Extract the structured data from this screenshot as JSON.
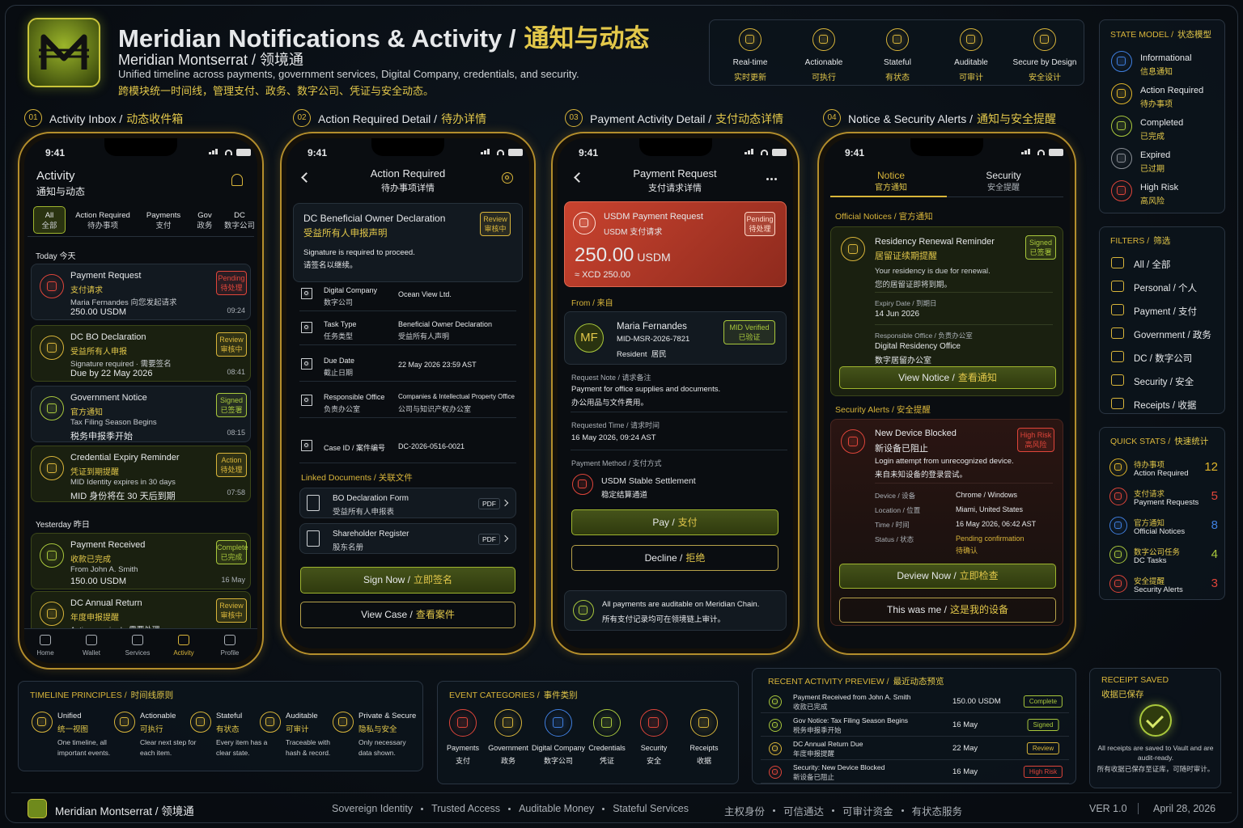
{
  "header": {
    "title": "Meridian Notifications & Activity /",
    "title_cn": "通知与动态",
    "brand": "Meridian Montserrat / 领境通",
    "desc": "Unified timeline across payments, government services, Digital Company, credentials, and security.",
    "desc_cn": "跨模块统一时间线，管理支付、政务、数字公司、凭证与安全动态。",
    "features": [
      [
        "Real-time",
        "实时更新"
      ],
      [
        "Actionable",
        "可执行"
      ],
      [
        "Stateful",
        "有状态"
      ],
      [
        "Auditable",
        "可审计"
      ],
      [
        "Secure by Design",
        "安全设计"
      ]
    ]
  },
  "sections": [
    [
      "01",
      "Activity Inbox /",
      "动态收件箱"
    ],
    [
      "02",
      "Action Required Detail /",
      "待办详情"
    ],
    [
      "03",
      "Payment Activity Detail /",
      "支付动态详情"
    ],
    [
      "04",
      "Notice & Security Alerts /",
      "通知与安全提醒"
    ]
  ],
  "inbox": {
    "time": "9:41",
    "title": "Activity",
    "title_cn": "通知与动态",
    "tabs": [
      [
        "All",
        "全部"
      ],
      [
        "Action Required",
        "待办事项"
      ],
      [
        "Payments",
        "支付"
      ],
      [
        "Gov",
        "政务"
      ],
      [
        "DC",
        "数字公司"
      ]
    ],
    "today": "Today 今天",
    "items": [
      {
        "title": "Payment Request",
        "cn": "支付请求",
        "line1": "Maria Fernandes 向您发起请求",
        "line2": "250.00 USDM",
        "badge": [
          "Pending",
          "待处理"
        ],
        "time": "09:24",
        "color": "#e0453a"
      },
      {
        "title": "DC BO Declaration",
        "cn": "受益所有人申报",
        "line1": "Signature required · 需要签名",
        "line2": "Due by 22 May 2026",
        "badge": [
          "Review",
          "审核中"
        ],
        "time": "08:41",
        "color": "#d9b53a"
      },
      {
        "title": "Government Notice",
        "cn": "官方通知",
        "line1": "Tax Filing Season Begins",
        "line2": "税务申报季开始",
        "badge": [
          "Signed",
          "已签署"
        ],
        "time": "08:15",
        "color": "#a9c83c"
      },
      {
        "title": "Credential Expiry Reminder",
        "cn": "凭证到期提醒",
        "line1": "MID Identity expires in 30 days",
        "line2": "MID 身份将在 30 天后到期",
        "badge": [
          "Action",
          "待处理"
        ],
        "time": "07:58",
        "color": "#d9b53a"
      }
    ],
    "yesterday": "Yesterday 昨日",
    "items_y": [
      {
        "title": "Payment Received",
        "cn": "收款已完成",
        "line1": "From John A. Smith",
        "line2": "150.00 USDM",
        "badge": [
          "Complete",
          "已完成"
        ],
        "time": "16 May",
        "color": "#a9c83c"
      },
      {
        "title": "DC Annual Return",
        "cn": "年度申报提醒",
        "line1": "Action required · 需要处理",
        "badge": [
          "Review",
          "审核中"
        ],
        "color": "#d9b53a"
      }
    ],
    "nav": [
      "Home",
      "Wallet",
      "Services",
      "Activity",
      "Profile"
    ]
  },
  "action": {
    "time": "9:41",
    "title": "Action Required",
    "title_cn": "待办事项详情",
    "card": {
      "title": "DC Beneficial Owner Declaration",
      "cn": "受益所有人申报声明",
      "badge": [
        "Review",
        "审核中"
      ],
      "note": "Signature is required to proceed.",
      "note_cn": "请签名以继续。"
    },
    "rows": [
      {
        "label": "Digital Company",
        "label_cn": "数字公司",
        "value": "Ocean View Ltd."
      },
      {
        "label": "Task Type",
        "label_cn": "任务类型",
        "value": "Beneficial Owner Declaration",
        "value_cn": "受益所有人声明"
      },
      {
        "label": "Due Date",
        "label_cn": "截止日期",
        "value": "22 May 2026 23:59 AST"
      },
      {
        "label": "Responsible Office",
        "label_cn": "负责办公室",
        "value": "Companies & Intellectual Property Office",
        "value_cn": "公司与知识产权办公室"
      },
      {
        "label": "Case ID / 案件编号",
        "value": "DC-2026-0516-0021"
      }
    ],
    "docs_title": "Linked Documents / 关联文件",
    "docs": [
      {
        "title": "BO Declaration Form",
        "cn": "受益所有人申报表",
        "tag": "PDF"
      },
      {
        "title": "Shareholder Register",
        "cn": "股东名册",
        "tag": "PDF"
      }
    ],
    "primary": [
      "Sign Now /",
      "立即签名"
    ],
    "secondary": [
      "View Case /",
      "查看案件"
    ]
  },
  "payment": {
    "time": "9:41",
    "title": "Payment Request",
    "title_cn": "支付请求详情",
    "card": {
      "title": "USDM Payment Request",
      "cn": "USDM 支付请求",
      "badge": [
        "Pending",
        "待处理"
      ],
      "amount": "250.00",
      "unit": "USDM",
      "fx": "≈ XCD 250.00"
    },
    "from": "From / 来自",
    "payer": {
      "initials": "MF",
      "name": "Maria Fernandes",
      "id": "MID-MSR-2026-7821",
      "role": "Resident  居民",
      "badge": [
        "MID Verified",
        "已验证"
      ]
    },
    "note_label": "Request Note / 请求备注",
    "note": "Payment for office supplies and documents.",
    "note_cn": "办公用品与文件费用。",
    "time_label": "Requested Time / 请求时间",
    "time_value": "16 May 2026, 09:24 AST",
    "method_label": "Payment Method / 支付方式",
    "method": "USDM Stable Settlement",
    "method_cn": "稳定结算通道",
    "primary": [
      "Pay /",
      "支付"
    ],
    "secondary": [
      "Decline /",
      "拒绝"
    ],
    "footer": "All payments are auditable on Meridian Chain.",
    "footer_cn": "所有支付记录均可在领境链上审计。"
  },
  "alerts": {
    "time": "9:41",
    "tabs": [
      [
        "Notice",
        "官方通知"
      ],
      [
        "Security",
        "安全提醒"
      ]
    ],
    "notices_title": "Official Notices / 官方通知",
    "notice": {
      "title": "Residency Renewal Reminder",
      "cn": "居留证续期提醒",
      "badge": [
        "Signed",
        "已签署"
      ],
      "desc": "Your residency is due for renewal.",
      "desc_cn": "您的居留证即将到期。",
      "expiry_label": "Expiry Date / 到期日",
      "expiry": "14 Jun 2026",
      "office_label": "Responsible Office / 负责办公室",
      "office": "Digital Residency Office",
      "office_cn": "数字居留办公室",
      "button": [
        "View Notice /",
        "查看通知"
      ]
    },
    "security_title": "Security Alerts / 安全提醒",
    "alert": {
      "title": "New Device Blocked",
      "cn": "新设备已阻止",
      "badge": [
        "High Risk",
        "高风险"
      ],
      "desc": "Login attempt from unrecognized device.",
      "desc_cn": "来自未知设备的登录尝试。",
      "rows": [
        [
          "Device / 设备",
          "Chrome / Windows"
        ],
        [
          "Location / 位置",
          "Miami, United States"
        ],
        [
          "Time / 时间",
          "16 May 2026, 06:42 AST"
        ],
        [
          "Status / 状态",
          "Pending confirmation",
          "待确认"
        ]
      ],
      "primary": [
        "Deview Now /",
        "立即检查"
      ],
      "secondary": [
        "This was me /",
        "这是我的设备"
      ]
    }
  },
  "state_model": {
    "title": [
      "STATE MODEL /",
      "状态模型"
    ],
    "items": [
      {
        "en": "Informational",
        "cn": "信息通知",
        "color": "#3f7fe0"
      },
      {
        "en": "Action Required",
        "cn": "待办事项",
        "color": "#e0b52a"
      },
      {
        "en": "Completed",
        "cn": "已完成",
        "color": "#a9c83c"
      },
      {
        "en": "Expired",
        "cn": "已过期",
        "color": "#8a8f96"
      },
      {
        "en": "High Risk",
        "cn": "高风险",
        "color": "#e0453a"
      }
    ]
  },
  "filters": {
    "title": [
      "FILTERS /",
      "筛选"
    ],
    "items": [
      "All / 全部",
      "Personal / 个人",
      "Payment / 支付",
      "Government / 政务",
      "DC / 数字公司",
      "Security / 安全",
      "Receipts / 收据"
    ]
  },
  "quick_stats": {
    "title": [
      "QUICK STATS /",
      "快速统计"
    ],
    "items": [
      {
        "cn": "待办事项",
        "en": "Action Required",
        "value": "12",
        "color": "#e0b52a"
      },
      {
        "cn": "支付请求",
        "en": "Payment Requests",
        "value": "5",
        "color": "#e0453a"
      },
      {
        "cn": "官方通知",
        "en": "Official Notices",
        "value": "8",
        "color": "#3f7fe0"
      },
      {
        "cn": "数字公司任务",
        "en": "DC Tasks",
        "value": "4",
        "color": "#a9c83c"
      },
      {
        "cn": "安全提醒",
        "en": "Security Alerts",
        "value": "3",
        "color": "#e0453a"
      }
    ]
  },
  "principles": {
    "title": [
      "TIMELINE PRINCIPLES /",
      "时间线原则"
    ],
    "items": [
      {
        "en": "Unified",
        "cn": "统一视图",
        "desc": "One timeline, all important events."
      },
      {
        "en": "Actionable",
        "cn": "可执行",
        "desc": "Clear next step for each item."
      },
      {
        "en": "Stateful",
        "cn": "有状态",
        "desc": "Every item has a clear state."
      },
      {
        "en": "Auditable",
        "cn": "可审计",
        "desc": "Traceable with hash & record."
      },
      {
        "en": "Private & Secure",
        "cn": "隐私与安全",
        "desc": "Only necessary data shown."
      }
    ]
  },
  "categories": {
    "title": [
      "EVENT CATEGORIES /",
      "事件类别"
    ],
    "items": [
      {
        "en": "Payments",
        "cn": "支付",
        "color": "#e0453a"
      },
      {
        "en": "Government",
        "cn": "政务",
        "color": "#d9b53a"
      },
      {
        "en": "Digital Company",
        "cn": "数字公司",
        "color": "#3f7fe0"
      },
      {
        "en": "Credentials",
        "cn": "凭证",
        "color": "#a9c83c"
      },
      {
        "en": "Security",
        "cn": "安全",
        "color": "#e0453a"
      },
      {
        "en": "Receipts",
        "cn": "收据",
        "color": "#d9b53a"
      }
    ]
  },
  "recent": {
    "title": [
      "RECENT ACTIVITY PREVIEW /",
      "最近动态预览"
    ],
    "items": [
      {
        "title": "Payment Received from John A. Smith",
        "cn": "收款已完成",
        "amount": "150.00 USDM",
        "badge": "Complete",
        "color": "#a9c83c"
      },
      {
        "title": "Gov Notice: Tax Filing Season Begins",
        "cn": "税务申报季开始",
        "amount": "16 May",
        "badge": "Signed",
        "color": "#a9c83c"
      },
      {
        "title": "DC Annual Return Due",
        "cn": "年度申报提醒",
        "amount": "22 May",
        "badge": "Review",
        "color": "#d9b53a"
      },
      {
        "title": "Security: New Device Blocked",
        "cn": "新设备已阻止",
        "amount": "16 May",
        "badge": "High Risk",
        "color": "#e0453a"
      }
    ]
  },
  "receipt": {
    "title": "RECEIPT SAVED",
    "title_cn": "收据已保存",
    "text": "All receipts are saved to Vault and are audit-ready.",
    "text_cn": "所有收据已保存至证库，可随时审计。"
  },
  "footer": {
    "brand": "Meridian Montserrat / 领境通",
    "tagline": [
      "Sovereign Identity",
      "Trusted Access",
      "Auditable Money",
      "Stateful Services"
    ],
    "tagline_cn": [
      "主权身份",
      "可信通达",
      "可审计资金",
      "有状态服务"
    ],
    "version": "VER 1.0",
    "date": "April 28, 2026"
  }
}
